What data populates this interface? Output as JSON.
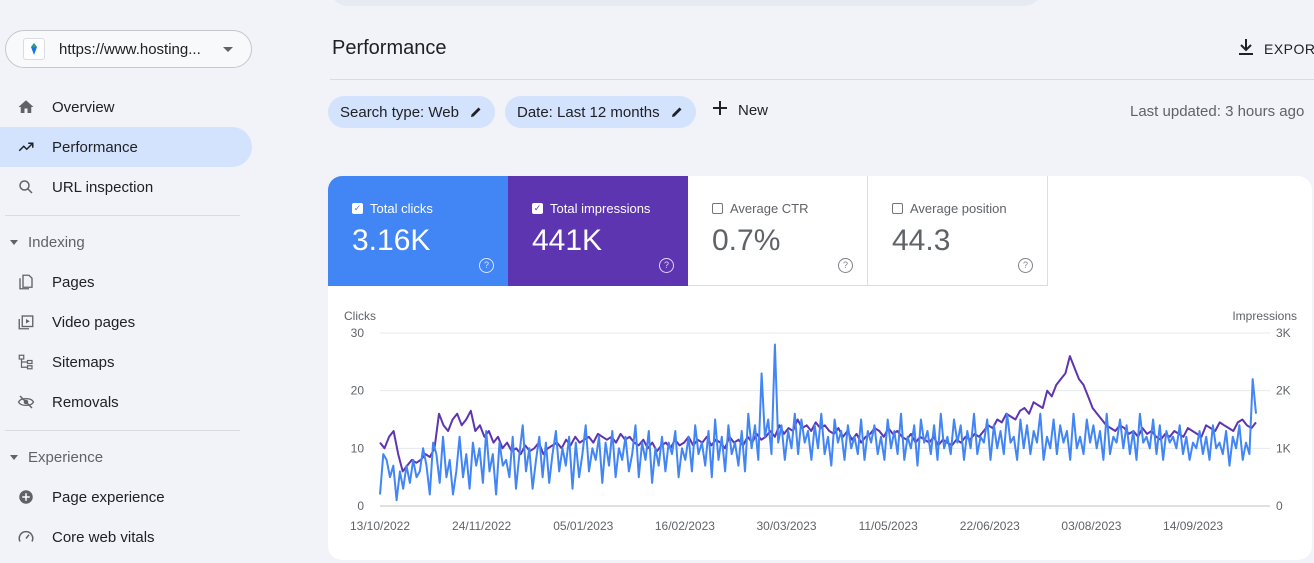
{
  "sidebar": {
    "property_url": "https://www.hosting...",
    "items": [
      {
        "label": "Overview",
        "icon": "home-icon"
      },
      {
        "label": "Performance",
        "icon": "trending-up-icon",
        "active": true
      },
      {
        "label": "URL inspection",
        "icon": "search-icon"
      }
    ],
    "sections": [
      {
        "title": "Indexing",
        "items": [
          {
            "label": "Pages",
            "icon": "pages-icon"
          },
          {
            "label": "Video pages",
            "icon": "video-pages-icon"
          },
          {
            "label": "Sitemaps",
            "icon": "sitemap-icon"
          },
          {
            "label": "Removals",
            "icon": "eye-off-icon"
          }
        ]
      },
      {
        "title": "Experience",
        "items": [
          {
            "label": "Page experience",
            "icon": "plus-circle-icon"
          },
          {
            "label": "Core web vitals",
            "icon": "gauge-icon"
          }
        ]
      }
    ]
  },
  "header": {
    "title": "Performance",
    "export_label": "EXPORT"
  },
  "filters": {
    "search_type": "Search type: Web",
    "date": "Date: Last 12 months",
    "new_label": "New",
    "last_updated": "Last updated: 3 hours ago"
  },
  "metrics": [
    {
      "label": "Total clicks",
      "value": "3.16K",
      "checked": true,
      "color": "#4285f4"
    },
    {
      "label": "Total impressions",
      "value": "441K",
      "checked": true,
      "color": "#5e35b1"
    },
    {
      "label": "Average CTR",
      "value": "0.7%",
      "checked": false
    },
    {
      "label": "Average position",
      "value": "44.3",
      "checked": false
    }
  ],
  "colors": {
    "clicks": "#4285f4",
    "impressions": "#5e35b1",
    "active_nav": "#d3e3fd"
  },
  "chart_data": {
    "type": "line",
    "ylabel_left": "Clicks",
    "ylabel_right": "Impressions",
    "ylim_left": [
      0,
      30
    ],
    "ylim_right": [
      0,
      3000
    ],
    "yticks_left": [
      "0",
      "10",
      "20",
      "30"
    ],
    "yticks_right": [
      "0",
      "1K",
      "2K",
      "3K"
    ],
    "xticks": [
      "13/10/2022",
      "24/11/2022",
      "05/01/2023",
      "16/02/2023",
      "30/03/2023",
      "11/05/2023",
      "22/06/2023",
      "03/08/2023",
      "14/09/2023"
    ],
    "x_start": "2022-10-13",
    "x_end": "2023-10-10",
    "grid": true,
    "series": [
      {
        "name": "Clicks",
        "axis": "left",
        "values": [
          2,
          9,
          8,
          5,
          7,
          1,
          6,
          3,
          7,
          4,
          8,
          5,
          6,
          10,
          7,
          2,
          11,
          9,
          4,
          12,
          5,
          8,
          2,
          6,
          12,
          5,
          9,
          3,
          11,
          7,
          10,
          4,
          13,
          6,
          9,
          2,
          11,
          7,
          8,
          5,
          12,
          3,
          9,
          14,
          6,
          10,
          3,
          8,
          12,
          5,
          11,
          4,
          9,
          13,
          6,
          10,
          7,
          12,
          3,
          11,
          5,
          9,
          14,
          6,
          10,
          8,
          12,
          4,
          11,
          7,
          13,
          5,
          10,
          8,
          12,
          6,
          9,
          14,
          5,
          11,
          8,
          13,
          4,
          10,
          7,
          12,
          6,
          11,
          9,
          13,
          5,
          10,
          8,
          12,
          6,
          14,
          9,
          11,
          7,
          13,
          5,
          15,
          8,
          12,
          6,
          14,
          9,
          11,
          7,
          13,
          6,
          16,
          10,
          14,
          8,
          23,
          12,
          15,
          9,
          28,
          11,
          14,
          8,
          13,
          10,
          16,
          9,
          15,
          11,
          13,
          8,
          14,
          10,
          16,
          9,
          12,
          7,
          15,
          11,
          13,
          8,
          14,
          10,
          12,
          9,
          15,
          8,
          13,
          11,
          14,
          9,
          12,
          8,
          15,
          10,
          13,
          9,
          16,
          8,
          12,
          10,
          14,
          7,
          15,
          11,
          13,
          9,
          14,
          8,
          16,
          10,
          12,
          9,
          15,
          11,
          14,
          8,
          13,
          10,
          16,
          9,
          12,
          11,
          15,
          8,
          14,
          10,
          13,
          9,
          16,
          11,
          12,
          8,
          15,
          10,
          14,
          9,
          13,
          11,
          16,
          8,
          12,
          10,
          15,
          9,
          14,
          11,
          13,
          8,
          16,
          10,
          12,
          9,
          15,
          11,
          14,
          10,
          13,
          8,
          16,
          9,
          12,
          11,
          15,
          10,
          14,
          9,
          13,
          8,
          16,
          11,
          12,
          10,
          15,
          9,
          14,
          8,
          13,
          11,
          12,
          10,
          14,
          9,
          12,
          8,
          11,
          10,
          13,
          9,
          12,
          8,
          14,
          10,
          11,
          9,
          13,
          7,
          12,
          10,
          14,
          8,
          11,
          9,
          22,
          16
        ]
      },
      {
        "name": "Impressions",
        "axis": "right",
        "values": [
          1100,
          1000,
          1200,
          1300,
          900,
          600,
          700,
          800,
          750,
          800,
          900,
          850,
          1000,
          1600,
          1400,
          1300,
          1500,
          1600,
          1400,
          1500,
          1650,
          1300,
          1400,
          1200,
          1300,
          1100,
          1200,
          1000,
          1100,
          950,
          1000,
          900,
          1050,
          950,
          1000,
          1100,
          900,
          1000,
          1050,
          1100,
          1000,
          1150,
          1050,
          1200,
          1100,
          1150,
          1200,
          1100,
          1250,
          1200,
          1150,
          1200,
          1100,
          1250,
          1150,
          1200,
          1100,
          1050,
          1150,
          1000,
          1100,
          950,
          1050,
          1100,
          1000,
          1150,
          1050,
          1100,
          1200,
          1050,
          1150,
          1100,
          1200,
          1050,
          1150,
          1100,
          1000,
          1200,
          1100,
          1150,
          1050,
          1200,
          1100,
          1250,
          1150,
          1200,
          1300,
          1200,
          1400,
          1250,
          1350,
          1300,
          1500,
          1350,
          1400,
          1300,
          1450,
          1350,
          1400,
          1300,
          1250,
          1350,
          1200,
          1300,
          1150,
          1250,
          1100,
          1200,
          1250,
          1350,
          1300,
          1200,
          1350,
          1250,
          1300,
          1200,
          1150,
          1250,
          1100,
          1200,
          1150,
          1100,
          1200,
          1050,
          1150,
          1100,
          1050,
          1150,
          1100,
          1200,
          1150,
          1250,
          1200,
          1300,
          1400,
          1350,
          1500,
          1450,
          1600,
          1550,
          1500,
          1650,
          1700,
          1600,
          1800,
          1750,
          1700,
          2000,
          1900,
          2100,
          2200,
          2300,
          2600,
          2400,
          2200,
          2100,
          1900,
          1700,
          1600,
          1500,
          1400,
          1350,
          1300,
          1400,
          1350,
          1250,
          1300,
          1200,
          1350,
          1250,
          1300,
          1200,
          1150,
          1250,
          1200,
          1300,
          1250,
          1200,
          1350,
          1300,
          1250,
          1200,
          1400,
          1350,
          1300,
          1450,
          1400,
          1350,
          1300,
          1450,
          1500,
          1400,
          1350,
          1450
        ]
      }
    ]
  }
}
